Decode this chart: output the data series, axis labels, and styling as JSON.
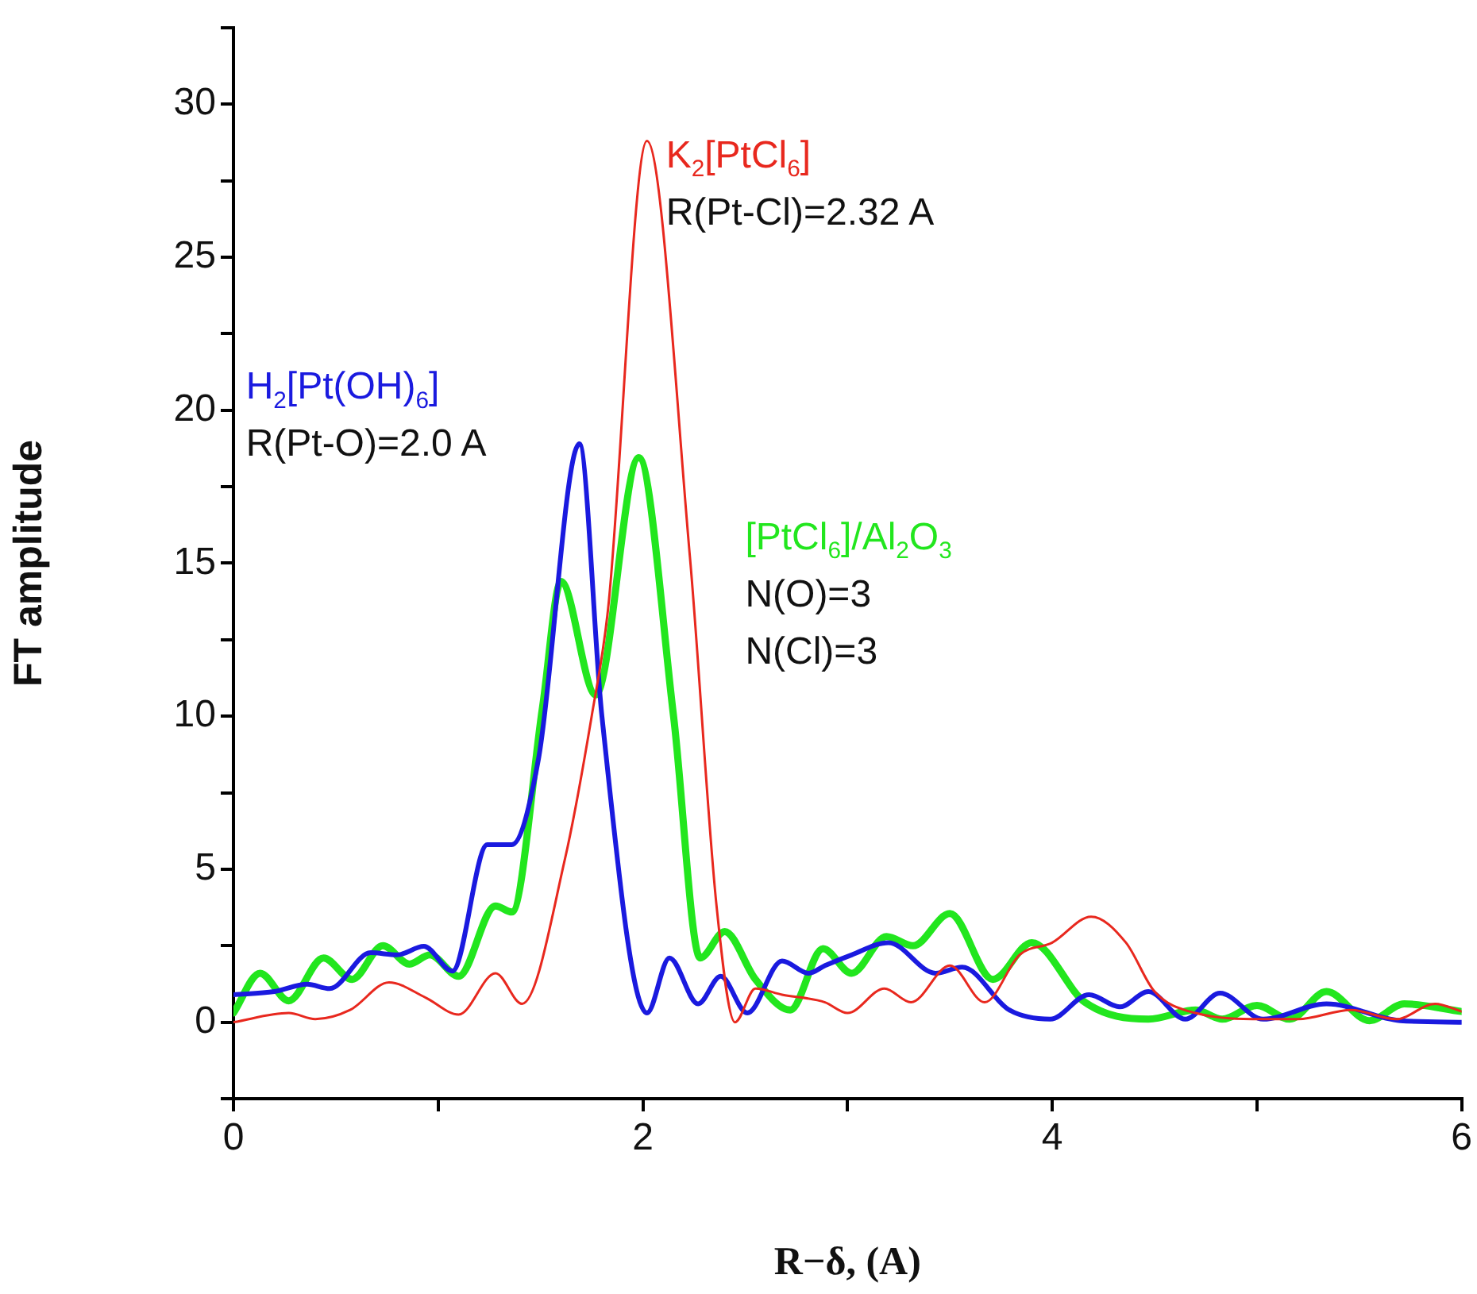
{
  "chart_data": {
    "type": "line",
    "xlabel": "R−δ, (A)",
    "ylabel": "FT amplitude",
    "marker": "none",
    "line_style": "solid",
    "grid": false,
    "legend": false,
    "xlim": [
      0,
      6
    ],
    "xticks": [
      0,
      {
        "value": 1,
        "label": null
      },
      2,
      {
        "value": 3,
        "label": null
      },
      4,
      {
        "value": 5,
        "label": null
      },
      6
    ],
    "ylim": [
      -2.5,
      32.5
    ],
    "yticks": [
      {
        "value": -2.5,
        "label": null
      },
      0,
      {
        "value": 2.5,
        "label": null
      },
      5,
      {
        "value": 7.5,
        "label": null
      },
      10,
      {
        "value": 12.5,
        "label": null
      },
      15,
      {
        "value": 17.5,
        "label": null
      },
      20,
      {
        "value": 22.5,
        "label": null
      },
      25,
      {
        "value": 27.5,
        "label": null
      },
      30,
      {
        "value": 32.5,
        "label": null
      }
    ],
    "series": [
      {
        "name": "K$_{2}$[PtCl$_{6}$]",
        "color": "#e8281e",
        "x": [
          0,
          0.27,
          0.4,
          0.57,
          0.76,
          0.94,
          1.1,
          1.28,
          1.41,
          1.62,
          1.75,
          1.83,
          2.02,
          2.23,
          2.36,
          2.45,
          2.55,
          2.68,
          2.89,
          3.0,
          3.18,
          3.31,
          3.5,
          3.67,
          3.84,
          4.0,
          4.19,
          4.36,
          4.5,
          4.7,
          5.03,
          5.2,
          5.46,
          5.68,
          5.87,
          6.0
        ],
        "values": [
          0,
          0.3,
          0.1,
          0.4,
          1.3,
          0.8,
          0.25,
          1.6,
          0.6,
          5.35,
          10,
          13.5,
          28.8,
          15.2,
          3.8,
          0,
          1.1,
          0.9,
          0.65,
          0.3,
          1.1,
          0.65,
          1.85,
          0.65,
          2.2,
          2.6,
          3.45,
          2.6,
          1.0,
          0.3,
          0.1,
          0.1,
          0.4,
          0.1,
          0.6,
          0.35
        ]
      },
      {
        "name": "H$_{2}$[Pt(OH)$_{6}$]",
        "color": "#1a1adf",
        "x": [
          0,
          0.2,
          0.36,
          0.47,
          0.67,
          0.8,
          0.93,
          1.07,
          1.24,
          1.36,
          1.49,
          1.69,
          1.8,
          2.02,
          2.13,
          2.27,
          2.38,
          2.51,
          2.68,
          2.81,
          2.89,
          3.02,
          3.2,
          3.43,
          3.56,
          3.79,
          3.99,
          4.18,
          4.33,
          4.47,
          4.65,
          4.82,
          5.03,
          5.34,
          5.7,
          6.0
        ],
        "values": [
          0.9,
          1.0,
          1.24,
          1.1,
          2.27,
          2.2,
          2.48,
          1.67,
          5.8,
          5.8,
          8.6,
          18.9,
          10,
          0.3,
          2.1,
          0.6,
          1.5,
          0.3,
          2.0,
          1.6,
          1.85,
          2.2,
          2.6,
          1.6,
          1.8,
          0.4,
          0.1,
          0.9,
          0.5,
          1.0,
          0.1,
          0.95,
          0.1,
          0.6,
          0.05,
          0
        ]
      },
      {
        "name": "[PtCl$_{6}$]/Al$_{2}$O$_{3}$",
        "color": "#22e61e",
        "x": [
          0,
          0.13,
          0.27,
          0.44,
          0.58,
          0.73,
          0.86,
          0.96,
          1.1,
          1.28,
          1.36,
          1.51,
          1.6,
          1.77,
          1.98,
          2.15,
          2.28,
          2.4,
          2.55,
          2.72,
          2.88,
          3.02,
          3.19,
          3.32,
          3.5,
          3.71,
          3.9,
          4.16,
          4.47,
          4.7,
          4.83,
          5.0,
          5.16,
          5.34,
          5.55,
          5.72,
          6.0
        ],
        "values": [
          0.3,
          1.6,
          0.7,
          2.1,
          1.4,
          2.5,
          1.9,
          2.2,
          1.5,
          3.8,
          3.6,
          10.3,
          14.4,
          10.7,
          18.45,
          10,
          2.1,
          2.96,
          1.4,
          0.4,
          2.4,
          1.6,
          2.8,
          2.5,
          3.55,
          1.4,
          2.6,
          0.65,
          0.1,
          0.4,
          0.1,
          0.55,
          0.1,
          1.0,
          0.05,
          0.6,
          0.35
        ]
      }
    ],
    "annotations": [
      "R(Pt-Cl)=2.32 A",
      "R(Pt-O)=2.0 A",
      "N(O)=3",
      "N(Cl)=3"
    ]
  }
}
